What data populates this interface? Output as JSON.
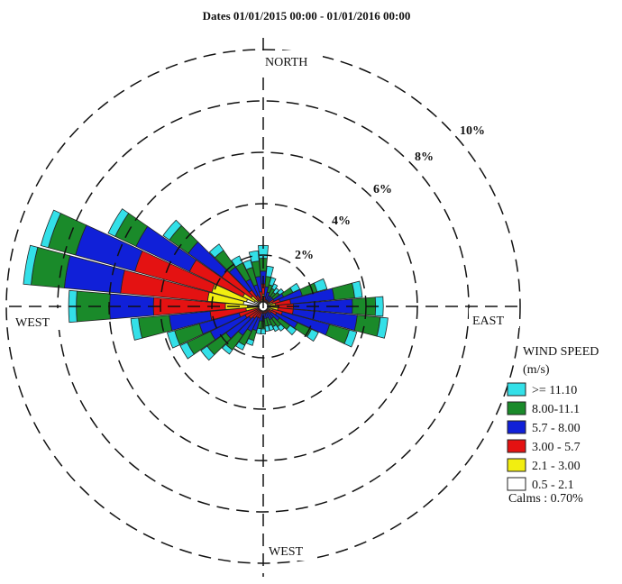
{
  "chart_data": {
    "type": "wind-rose",
    "title": "Dates 01/01/2015 00:00 - 01/01/2016 00:00",
    "radial_ticks": [
      "2%",
      "4%",
      "6%",
      "8%",
      "10%"
    ],
    "radial_max_percent": 10,
    "direction_labels": {
      "north": "NORTH",
      "east": "EAST",
      "south": "WEST",
      "west": "WEST"
    },
    "legend": {
      "title": "WIND SPEED",
      "units": "(m/s)",
      "calms": "Calms : 0.70%"
    },
    "bins": [
      {
        "label": ">= 11.10",
        "color": "#33e0e8"
      },
      {
        "label": "8.00-11.1",
        "color": "#1a8a2a"
      },
      {
        "label": "5.7 - 8.00",
        "color": "#1020d8"
      },
      {
        "label": "3.00 - 5.7",
        "color": "#e41212"
      },
      {
        "label": "2.1 - 3.00",
        "color": "#f2ee10"
      },
      {
        "label": "0.5 - 2.1",
        "color": "#ffffff"
      }
    ],
    "sector_width_deg": 10,
    "sectors": [
      {
        "dir": 0,
        "values": [
          0.5,
          0.5,
          0.5,
          0.4,
          0.3,
          0.0
        ]
      },
      {
        "dir": 10,
        "values": [
          0.4,
          0.4,
          0.4,
          0.2,
          0.0,
          0.0
        ]
      },
      {
        "dir": 20,
        "values": [
          0.3,
          0.3,
          0.3,
          0.1,
          0.0,
          0.0
        ]
      },
      {
        "dir": 30,
        "values": [
          0.2,
          0.3,
          0.2,
          0.1,
          0.0,
          0.0
        ]
      },
      {
        "dir": 40,
        "values": [
          0.2,
          0.2,
          0.2,
          0.1,
          0.0,
          0.0
        ]
      },
      {
        "dir": 50,
        "values": [
          0.2,
          0.3,
          0.2,
          0.1,
          0.0,
          0.0
        ]
      },
      {
        "dir": 60,
        "values": [
          0.3,
          0.4,
          0.4,
          0.2,
          0.1,
          0.0
        ]
      },
      {
        "dir": 70,
        "values": [
          0.4,
          0.6,
          0.9,
          0.3,
          0.2,
          0.0
        ]
      },
      {
        "dir": 80,
        "values": [
          0.3,
          0.8,
          1.7,
          0.6,
          0.2,
          0.1
        ]
      },
      {
        "dir": 90,
        "values": [
          0.3,
          0.9,
          2.3,
          0.6,
          0.3,
          0.1
        ]
      },
      {
        "dir": 100,
        "values": [
          0.3,
          0.9,
          2.5,
          0.6,
          0.3,
          0.1
        ]
      },
      {
        "dir": 110,
        "values": [
          0.3,
          0.8,
          1.9,
          0.4,
          0.2,
          0.0
        ]
      },
      {
        "dir": 120,
        "values": [
          0.3,
          0.6,
          0.9,
          0.3,
          0.1,
          0.0
        ]
      },
      {
        "dir": 130,
        "values": [
          0.3,
          0.5,
          0.4,
          0.2,
          0.0,
          0.0
        ]
      },
      {
        "dir": 140,
        "values": [
          0.2,
          0.4,
          0.3,
          0.1,
          0.0,
          0.0
        ]
      },
      {
        "dir": 150,
        "values": [
          0.2,
          0.3,
          0.3,
          0.1,
          0.0,
          0.0
        ]
      },
      {
        "dir": 160,
        "values": [
          0.2,
          0.3,
          0.2,
          0.1,
          0.0,
          0.0
        ]
      },
      {
        "dir": 170,
        "values": [
          0.2,
          0.3,
          0.2,
          0.1,
          0.0,
          0.0
        ]
      },
      {
        "dir": 180,
        "values": [
          0.2,
          0.3,
          0.3,
          0.1,
          0.0,
          0.0
        ]
      },
      {
        "dir": 190,
        "values": [
          0.2,
          0.3,
          0.3,
          0.1,
          0.0,
          0.0
        ]
      },
      {
        "dir": 200,
        "values": [
          0.2,
          0.4,
          0.5,
          0.3,
          0.0,
          0.0
        ]
      },
      {
        "dir": 210,
        "values": [
          0.2,
          0.6,
          0.6,
          0.3,
          0.0,
          0.0
        ]
      },
      {
        "dir": 220,
        "values": [
          0.2,
          0.7,
          0.8,
          0.4,
          0.0,
          0.0
        ]
      },
      {
        "dir": 230,
        "values": [
          0.3,
          0.9,
          1.1,
          0.5,
          0.0,
          0.0
        ]
      },
      {
        "dir": 240,
        "values": [
          0.3,
          1.0,
          1.5,
          0.6,
          0.0,
          0.0
        ]
      },
      {
        "dir": 250,
        "values": [
          0.3,
          1.0,
          1.6,
          0.8,
          0.0,
          0.0
        ]
      },
      {
        "dir": 260,
        "values": [
          0.3,
          1.2,
          1.6,
          1.4,
          0.5,
          0.0
        ]
      },
      {
        "dir": 270,
        "values": [
          0.3,
          1.3,
          1.7,
          2.8,
          1.3,
          0.0
        ]
      },
      {
        "dir": 280,
        "values": [
          0.3,
          1.3,
          2.2,
          3.4,
          1.4,
          0.6
        ]
      },
      {
        "dir": 290,
        "values": [
          0.3,
          1.1,
          2.4,
          3.1,
          1.4,
          0.5
        ]
      },
      {
        "dir": 300,
        "values": [
          0.3,
          0.9,
          2.3,
          2.3,
          0.5,
          0.2
        ]
      },
      {
        "dir": 310,
        "values": [
          0.3,
          0.9,
          1.6,
          1.4,
          0.3,
          0.1
        ]
      },
      {
        "dir": 320,
        "values": [
          0.3,
          0.8,
          1.1,
          0.5,
          0.1,
          0.0
        ]
      },
      {
        "dir": 330,
        "values": [
          0.3,
          0.7,
          0.7,
          0.3,
          0.0,
          0.0
        ]
      },
      {
        "dir": 340,
        "values": [
          0.3,
          0.7,
          0.5,
          0.2,
          0.0,
          0.0
        ]
      },
      {
        "dir": 350,
        "values": [
          0.4,
          0.6,
          0.6,
          0.3,
          0.1,
          0.0
        ]
      }
    ]
  }
}
